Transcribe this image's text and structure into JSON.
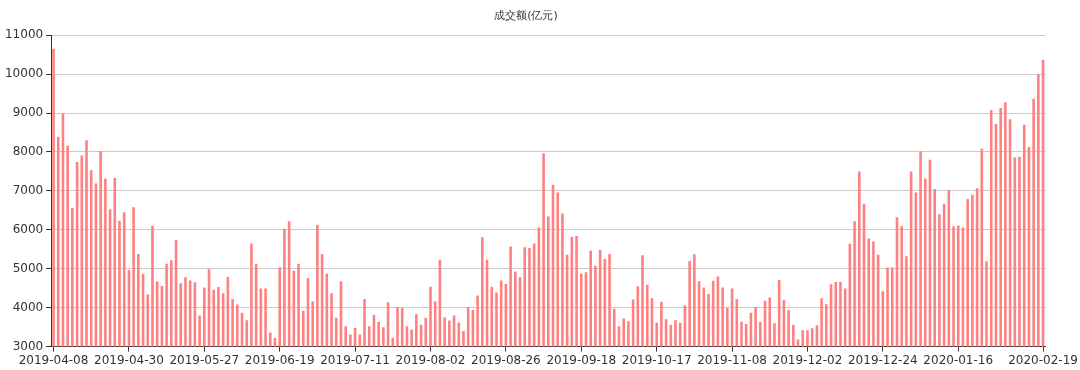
{
  "chart_data": {
    "type": "bar",
    "title": "成交额(亿元)",
    "categories": [
      "2019-04-08",
      null,
      null,
      null,
      null,
      null,
      null,
      null,
      null,
      null,
      null,
      null,
      null,
      null,
      null,
      null,
      "2019-04-30",
      null,
      null,
      null,
      null,
      null,
      null,
      null,
      null,
      null,
      null,
      null,
      null,
      null,
      null,
      null,
      "2019-05-27",
      null,
      null,
      null,
      null,
      null,
      null,
      null,
      null,
      null,
      null,
      null,
      null,
      null,
      null,
      null,
      "2019-06-19",
      null,
      null,
      null,
      null,
      null,
      null,
      null,
      null,
      null,
      null,
      null,
      null,
      null,
      null,
      null,
      "2019-07-11",
      null,
      null,
      null,
      null,
      null,
      null,
      null,
      null,
      null,
      null,
      null,
      null,
      null,
      null,
      null,
      "2019-08-02",
      null,
      null,
      null,
      null,
      null,
      null,
      null,
      null,
      null,
      null,
      null,
      null,
      null,
      null,
      null,
      "2019-08-26",
      null,
      null,
      null,
      null,
      null,
      null,
      null,
      null,
      null,
      null,
      null,
      null,
      null,
      null,
      null,
      "2019-09-18",
      null,
      null,
      null,
      null,
      null,
      null,
      null,
      null,
      null,
      null,
      null,
      null,
      null,
      null,
      null,
      "2019-10-17",
      null,
      null,
      null,
      null,
      null,
      null,
      null,
      null,
      null,
      null,
      null,
      null,
      null,
      null,
      null,
      "2019-11-08",
      null,
      null,
      null,
      null,
      null,
      null,
      null,
      null,
      null,
      null,
      null,
      null,
      null,
      null,
      null,
      "2019-12-02",
      null,
      null,
      null,
      null,
      null,
      null,
      null,
      null,
      null,
      null,
      null,
      null,
      null,
      null,
      null,
      "2019-12-24",
      null,
      null,
      null,
      null,
      null,
      null,
      null,
      null,
      null,
      null,
      null,
      null,
      null,
      null,
      null,
      "2020-01-16",
      null,
      null,
      null,
      null,
      null,
      null,
      null,
      null,
      null,
      null,
      null,
      null,
      null,
      null,
      null,
      null,
      null,
      "2020-02-19"
    ],
    "values": [
      10650,
      8390,
      8990,
      8160,
      6570,
      7740,
      7910,
      8300,
      7530,
      7190,
      8020,
      7320,
      6530,
      7330,
      6230,
      6450,
      4970,
      6580,
      5380,
      4870,
      4340,
      6100,
      4670,
      4560,
      5130,
      5220,
      5740,
      4630,
      4780,
      4700,
      4650,
      3800,
      4520,
      4990,
      4460,
      4530,
      4370,
      4790,
      4220,
      4080,
      3870,
      3680,
      5650,
      5130,
      4490,
      4490,
      3360,
      3220,
      5040,
      6030,
      6220,
      4950,
      5130,
      3920,
      4760,
      4160,
      6130,
      5380,
      4870,
      4370,
      3740,
      4680,
      3520,
      3310,
      3480,
      3310,
      4220,
      3520,
      3820,
      3630,
      3500,
      4140,
      3230,
      4010,
      4000,
      3520,
      3440,
      3830,
      3560,
      3740,
      4540,
      4160,
      5230,
      3750,
      3670,
      3800,
      3620,
      3400,
      4020,
      3940,
      4310,
      5810,
      5230,
      4540,
      4390,
      4700,
      4610,
      5570,
      4930,
      4780,
      5550,
      5530,
      5650,
      6060,
      7970,
      6340,
      7160,
      6960,
      6420,
      5360,
      5820,
      5840,
      4870,
      4910,
      5470,
      5080,
      5480,
      5250,
      5380,
      3970,
      3520,
      3720,
      3650,
      4210,
      4550,
      5350,
      4590,
      4240,
      3610,
      4150,
      3700,
      3560,
      3680,
      3610,
      4060,
      5200,
      5370,
      4680,
      4520,
      4350,
      4690,
      4800,
      4520,
      3990,
      4490,
      4220,
      3640,
      3580,
      3870,
      4010,
      3630,
      4180,
      4260,
      3600,
      4710,
      4200,
      3940,
      3560,
      3180,
      3420,
      3420,
      3470,
      3550,
      4240,
      4090,
      4600,
      4660,
      4660,
      4490,
      5640,
      6220,
      7500,
      6670,
      5780,
      5700,
      5360,
      4420,
      5030,
      5030,
      6320,
      6090,
      5320,
      7500,
      6960,
      8020,
      7320,
      7800,
      7050,
      6400,
      6670,
      7020,
      6090,
      6110,
      6060,
      6790,
      6900,
      7070,
      8080,
      5190,
      9080,
      8720,
      9130,
      9280,
      8840,
      7860,
      7880,
      8700,
      8130,
      9370,
      10000,
      10370
    ],
    "color": "#ff8080",
    "ylim": [
      3000,
      11000
    ],
    "yticks": [
      3000,
      4000,
      5000,
      6000,
      7000,
      8000,
      9000,
      10000,
      11000
    ],
    "grid": "y",
    "legend": false
  }
}
